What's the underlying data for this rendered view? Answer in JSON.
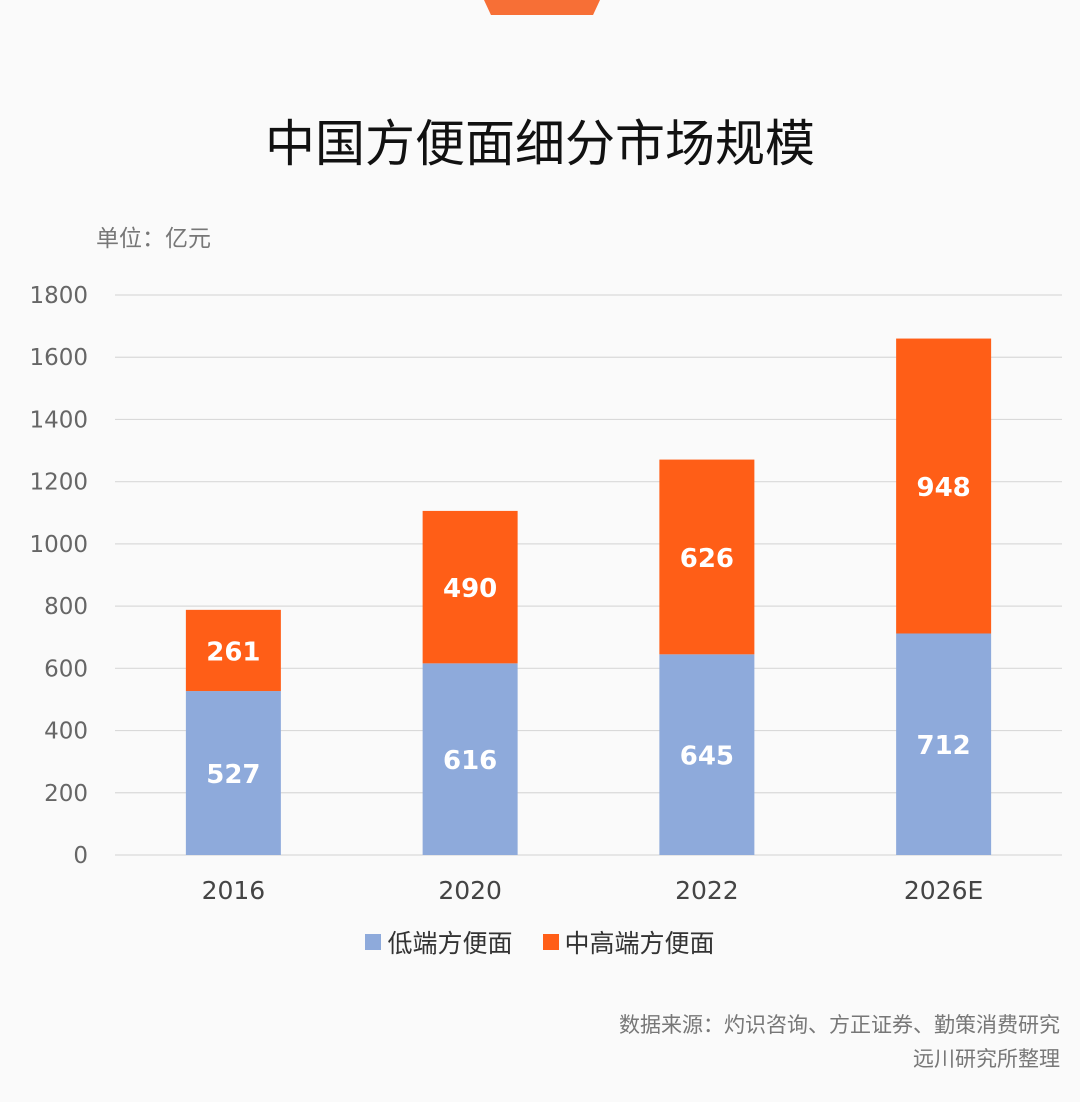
{
  "chart_data": {
    "type": "bar",
    "stacked": true,
    "title": "中国方便面细分市场规模",
    "unit_label": "单位：亿元",
    "categories": [
      "2016",
      "2020",
      "2022",
      "2026E"
    ],
    "series": [
      {
        "name": "低端方便面",
        "values": [
          527,
          616,
          645,
          712
        ],
        "color": "#8eaadb"
      },
      {
        "name": "中高端方便面",
        "values": [
          261,
          490,
          626,
          948
        ],
        "color": "#ff5e17"
      }
    ],
    "ylim": [
      0,
      1800
    ],
    "yticks": [
      0,
      200,
      400,
      600,
      800,
      1000,
      1200,
      1400,
      1600,
      1800
    ],
    "grid": true,
    "legend_position": "bottom"
  },
  "source": {
    "line1": "数据来源：灼识咨询、方正证券、勤策消费研究",
    "line2": "远川研究所整理"
  },
  "colors": {
    "accent_tab": "#f76f36",
    "background": "#fafafa"
  }
}
